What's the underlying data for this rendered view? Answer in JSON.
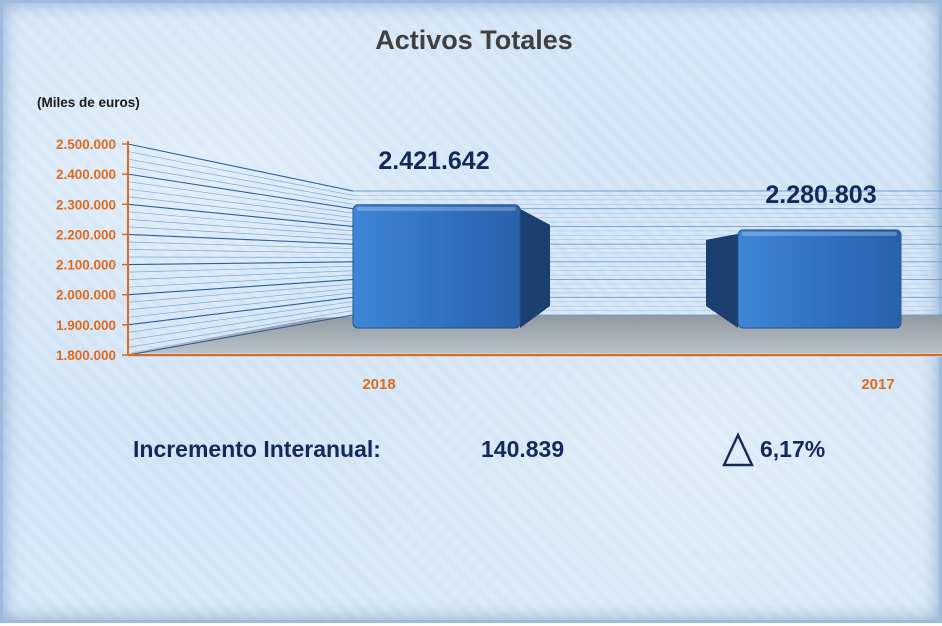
{
  "chart_data": {
    "type": "bar",
    "title": "Activos Totales",
    "unit_label": "(Miles de euros)",
    "categories": [
      "2018",
      "2017"
    ],
    "values": [
      2421642,
      2280803
    ],
    "value_labels": [
      "2.421.642",
      "2.280.803"
    ],
    "ylim": [
      1800000,
      2500000
    ],
    "yticks": [
      "2.500.000",
      "2.400.000",
      "2.300.000",
      "2.200.000",
      "2.100.000",
      "2.000.000",
      "1.900.000",
      "1.800.000"
    ],
    "ytick_values": [
      2500000,
      2400000,
      2300000,
      2200000,
      2100000,
      2000000,
      1900000,
      1800000
    ],
    "grid": true,
    "legend": "none",
    "colors": {
      "bar": "#2f6fbf",
      "bar_side": "#1b3f6e",
      "axis": "#e06a1c",
      "text": "#14285a"
    }
  },
  "footer": {
    "label": "Incremento Interanual:",
    "value": "140.839",
    "icon": "triangle-up-icon",
    "percent": "6,17%"
  }
}
